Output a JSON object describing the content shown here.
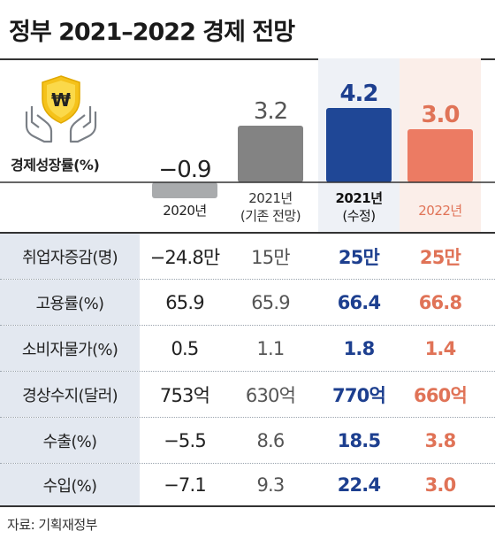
{
  "title": "정부 2021–2022 경제 전망",
  "chart_data": {
    "type": "bar",
    "ylabel": "경제성장률(%)",
    "categories": [
      "2020년",
      "2021년 (기존 전망)",
      "2021년 (수정)",
      "2022년"
    ],
    "values": [
      -0.9,
      3.2,
      4.2,
      3.0
    ],
    "value_labels": [
      "−0.9",
      "3.2",
      "4.2",
      "3.0"
    ],
    "category_lines": [
      [
        "2020년"
      ],
      [
        "2021년",
        "(기존 전망)"
      ],
      [
        "2021년",
        "(수정)"
      ],
      [
        "2022년"
      ]
    ],
    "colors": [
      "#a9abad",
      "#838383",
      "#1f4796",
      "#ec7b63"
    ]
  },
  "table": {
    "rows": [
      {
        "label": "취업자증감(명)",
        "values": [
          "−24.8만",
          "15만",
          "25만",
          "25만"
        ]
      },
      {
        "label": "고용률(%)",
        "values": [
          "65.9",
          "65.9",
          "66.4",
          "66.8"
        ]
      },
      {
        "label": "소비자물가(%)",
        "values": [
          "0.5",
          "1.1",
          "1.8",
          "1.4"
        ]
      },
      {
        "label": "경상수지(달러)",
        "values": [
          "753억",
          "630억",
          "770억",
          "660억"
        ]
      },
      {
        "label": "수출(%)",
        "values": [
          "−5.5",
          "8.6",
          "18.5",
          "3.8"
        ]
      },
      {
        "label": "수입(%)",
        "values": [
          "−7.1",
          "9.3",
          "22.4",
          "3.0"
        ]
      }
    ]
  },
  "source": "자료: 기획재정부",
  "icons": {
    "emblem": "won-shield-hands-icon"
  }
}
